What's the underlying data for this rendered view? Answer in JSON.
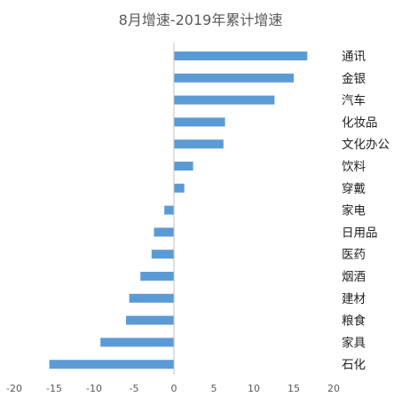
{
  "chart_data": {
    "type": "bar",
    "orientation": "horizontal",
    "title": "8月增速-2019年累计增速",
    "categories": [
      "通讯",
      "金银",
      "汽车",
      "化妆品",
      "文化办公",
      "饮料",
      "穿戴",
      "家电",
      "日用品",
      "医药",
      "烟酒",
      "建材",
      "粮食",
      "家具",
      "石化"
    ],
    "values": [
      16.7,
      15.0,
      12.6,
      6.4,
      6.2,
      2.4,
      1.3,
      -1.2,
      -2.5,
      -2.8,
      -4.2,
      -5.6,
      -6.0,
      -9.2,
      -15.6
    ],
    "xlim": [
      -20,
      20
    ],
    "xticks": [
      -20,
      -15,
      -10,
      -5,
      0,
      5,
      10,
      15,
      20
    ],
    "xlabel": "",
    "ylabel": "",
    "grid": false,
    "legend": "none",
    "bar_color": "#5B9BD5",
    "axis_color": "#BFBFBF"
  }
}
